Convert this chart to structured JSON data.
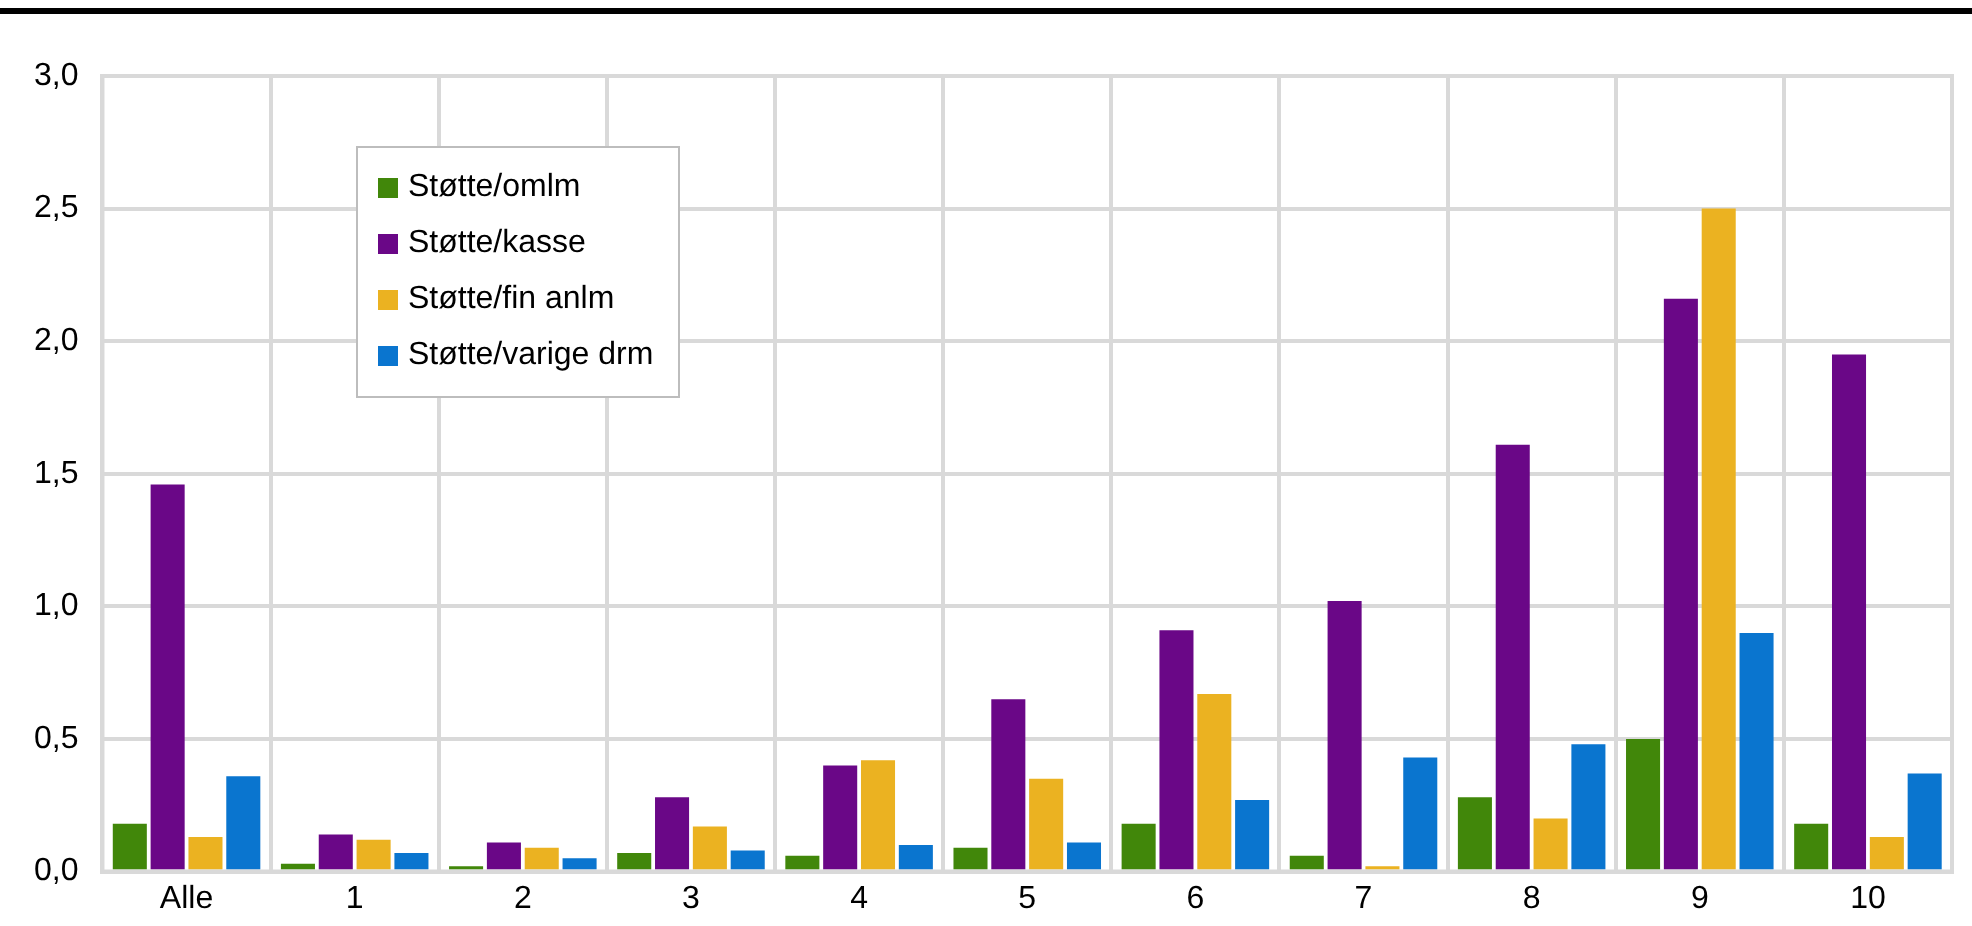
{
  "chart_data": {
    "type": "bar",
    "categories": [
      "Alle",
      "1",
      "2",
      "3",
      "4",
      "5",
      "6",
      "7",
      "8",
      "9",
      "10"
    ],
    "series": [
      {
        "name": "Støtte/omlm",
        "color": "#41870a",
        "values": [
          0.18,
          0.03,
          0.02,
          0.07,
          0.06,
          0.09,
          0.18,
          0.06,
          0.28,
          0.5,
          0.18
        ]
      },
      {
        "name": "Støtte/kasse",
        "color": "#6a0787",
        "values": [
          1.46,
          0.14,
          0.11,
          0.28,
          0.4,
          0.65,
          0.91,
          1.02,
          1.61,
          2.16,
          1.95
        ]
      },
      {
        "name": "Støtte/fin anlm",
        "color": "#ebb221",
        "values": [
          0.13,
          0.12,
          0.09,
          0.17,
          0.42,
          0.35,
          0.67,
          0.02,
          0.2,
          2.5,
          0.13
        ]
      },
      {
        "name": "Støtte/varige drm",
        "color": "#0a75cf",
        "values": [
          0.36,
          0.07,
          0.05,
          0.08,
          0.1,
          0.11,
          0.27,
          0.43,
          0.48,
          0.9,
          0.37
        ]
      }
    ],
    "ylim": [
      0,
      3
    ],
    "yticks": [
      {
        "value": 0,
        "label": "0,0"
      },
      {
        "value": 0.5,
        "label": "0,5"
      },
      {
        "value": 1,
        "label": "1,0"
      },
      {
        "value": 1.5,
        "label": "1,5"
      },
      {
        "value": 2,
        "label": "2,0"
      },
      {
        "value": 2.5,
        "label": "2,5"
      },
      {
        "value": 3,
        "label": "3,0"
      }
    ],
    "grid": true,
    "legend": "top left"
  }
}
